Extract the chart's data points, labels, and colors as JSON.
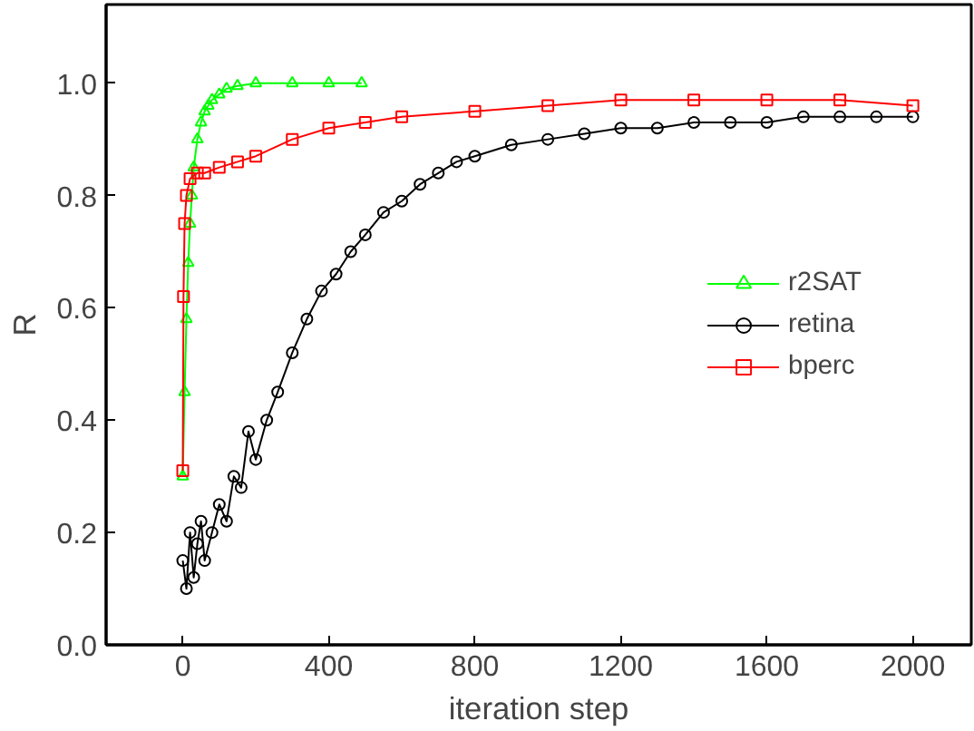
{
  "chart_data": {
    "type": "line",
    "xlabel": "iteration step",
    "ylabel": "R",
    "xlim": [
      -210,
      2160
    ],
    "ylim": [
      0,
      1.14
    ],
    "xticks": [
      0,
      400,
      800,
      1200,
      1600,
      2000
    ],
    "yticks": [
      {
        "value": 0,
        "label": "0.0"
      },
      0.2,
      0.4,
      0.6,
      0.8,
      {
        "value": 1,
        "label": "1.0"
      }
    ],
    "grid": false,
    "legend": "right",
    "series": [
      {
        "name": "r2SAT",
        "color": "#00ff00",
        "marker": "triangle",
        "x": [
          0,
          5,
          10,
          15,
          20,
          25,
          30,
          40,
          50,
          60,
          70,
          80,
          100,
          120,
          150,
          200,
          300,
          400,
          490
        ],
        "values": [
          0.3,
          0.45,
          0.58,
          0.68,
          0.75,
          0.8,
          0.85,
          0.9,
          0.93,
          0.95,
          0.96,
          0.97,
          0.98,
          0.99,
          0.995,
          1.0,
          1.0,
          1.0,
          1.0
        ]
      },
      {
        "name": "retina",
        "color": "#000000",
        "marker": "circle",
        "x": [
          0,
          10,
          20,
          30,
          40,
          50,
          60,
          80,
          100,
          120,
          140,
          160,
          180,
          200,
          230,
          260,
          300,
          340,
          380,
          420,
          460,
          500,
          550,
          600,
          650,
          700,
          750,
          800,
          900,
          1000,
          1100,
          1200,
          1300,
          1400,
          1500,
          1600,
          1700,
          1800,
          1900,
          2000
        ],
        "values": [
          0.15,
          0.1,
          0.2,
          0.12,
          0.18,
          0.22,
          0.15,
          0.2,
          0.25,
          0.22,
          0.3,
          0.28,
          0.38,
          0.33,
          0.4,
          0.45,
          0.52,
          0.58,
          0.63,
          0.66,
          0.7,
          0.73,
          0.77,
          0.79,
          0.82,
          0.84,
          0.86,
          0.87,
          0.89,
          0.9,
          0.91,
          0.92,
          0.92,
          0.93,
          0.93,
          0.93,
          0.94,
          0.94,
          0.94,
          0.94
        ]
      },
      {
        "name": "bperc",
        "color": "#ff0000",
        "marker": "square",
        "x": [
          0,
          2,
          5,
          10,
          20,
          40,
          60,
          100,
          150,
          200,
          300,
          400,
          500,
          600,
          800,
          1000,
          1200,
          1400,
          1600,
          1800,
          2000
        ],
        "values": [
          0.31,
          0.62,
          0.75,
          0.8,
          0.83,
          0.84,
          0.84,
          0.85,
          0.86,
          0.87,
          0.9,
          0.92,
          0.93,
          0.94,
          0.95,
          0.96,
          0.97,
          0.97,
          0.97,
          0.97,
          0.96
        ]
      }
    ]
  }
}
